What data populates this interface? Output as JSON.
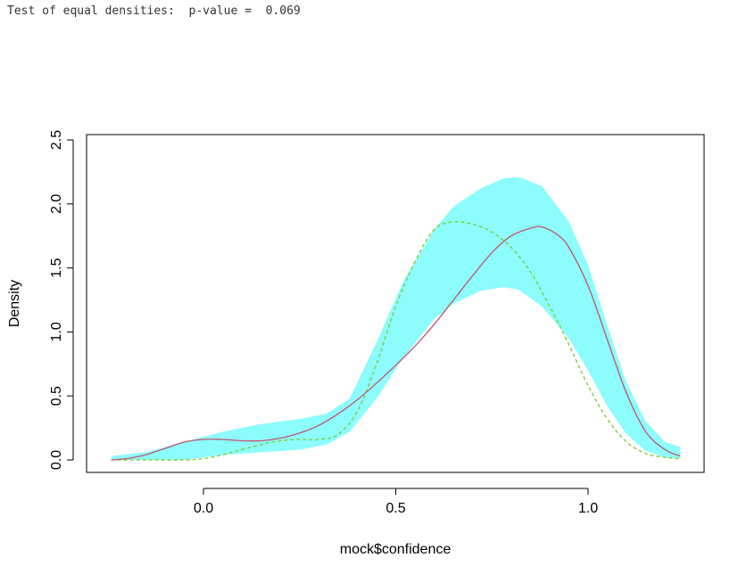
{
  "console": {
    "text": "Test of equal densities:  p-value =  0.069"
  },
  "chart_data": {
    "type": "line",
    "title": "",
    "xlabel": "mock$confidence",
    "ylabel": "Density",
    "xlim": [
      -0.25,
      1.25
    ],
    "ylim": [
      0.0,
      2.5
    ],
    "x_ticks": [
      0.0,
      0.5,
      1.0
    ],
    "x_tick_labels": [
      "0.0",
      "0.5",
      "1.0"
    ],
    "y_ticks": [
      0.0,
      0.5,
      1.0,
      1.5,
      2.0,
      2.5
    ],
    "y_tick_labels": [
      "0.0",
      "0.5",
      "1.0",
      "1.5",
      "2.0",
      "2.5"
    ],
    "grid": false,
    "colors": {
      "band": "#8cfcfc",
      "solid_line": "#c2566a",
      "dashed_line": "#7ccb2f"
    },
    "band": {
      "x": [
        -0.24,
        -0.15,
        -0.05,
        0.05,
        0.15,
        0.25,
        0.32,
        0.38,
        0.45,
        0.52,
        0.6,
        0.65,
        0.72,
        0.78,
        0.82,
        0.88,
        0.95,
        1.0,
        1.05,
        1.1,
        1.15,
        1.2,
        1.24
      ],
      "lower": [
        0.0,
        0.0,
        0.0,
        0.04,
        0.06,
        0.08,
        0.12,
        0.22,
        0.48,
        0.8,
        1.1,
        1.22,
        1.32,
        1.35,
        1.33,
        1.2,
        0.95,
        0.7,
        0.42,
        0.2,
        0.07,
        0.02,
        0.01
      ],
      "upper": [
        0.03,
        0.06,
        0.14,
        0.22,
        0.28,
        0.32,
        0.36,
        0.48,
        0.92,
        1.4,
        1.8,
        1.98,
        2.12,
        2.2,
        2.21,
        2.14,
        1.86,
        1.52,
        1.05,
        0.6,
        0.3,
        0.14,
        0.1
      ]
    },
    "series": [
      {
        "style": "solid",
        "x": [
          -0.24,
          -0.2,
          -0.15,
          -0.1,
          -0.05,
          0.0,
          0.05,
          0.1,
          0.15,
          0.2,
          0.25,
          0.3,
          0.35,
          0.4,
          0.45,
          0.5,
          0.55,
          0.6,
          0.65,
          0.7,
          0.75,
          0.8,
          0.85,
          0.88,
          0.92,
          0.95,
          1.0,
          1.05,
          1.1,
          1.15,
          1.2,
          1.24
        ],
        "y": [
          0.0,
          0.01,
          0.04,
          0.09,
          0.14,
          0.16,
          0.16,
          0.15,
          0.15,
          0.17,
          0.21,
          0.27,
          0.36,
          0.47,
          0.6,
          0.74,
          0.89,
          1.06,
          1.25,
          1.44,
          1.62,
          1.75,
          1.81,
          1.82,
          1.76,
          1.66,
          1.36,
          0.94,
          0.52,
          0.22,
          0.08,
          0.03
        ]
      },
      {
        "style": "dashed",
        "x": [
          -0.24,
          -0.15,
          -0.05,
          0.0,
          0.05,
          0.1,
          0.15,
          0.2,
          0.25,
          0.3,
          0.35,
          0.4,
          0.45,
          0.5,
          0.55,
          0.6,
          0.65,
          0.7,
          0.75,
          0.8,
          0.85,
          0.9,
          0.95,
          1.0,
          1.05,
          1.1,
          1.15,
          1.2,
          1.24
        ],
        "y": [
          0.0,
          0.0,
          0.0,
          0.01,
          0.04,
          0.08,
          0.12,
          0.15,
          0.16,
          0.16,
          0.2,
          0.38,
          0.75,
          1.2,
          1.55,
          1.8,
          1.86,
          1.84,
          1.78,
          1.66,
          1.47,
          1.2,
          0.9,
          0.58,
          0.32,
          0.14,
          0.05,
          0.02,
          0.01
        ]
      }
    ]
  }
}
